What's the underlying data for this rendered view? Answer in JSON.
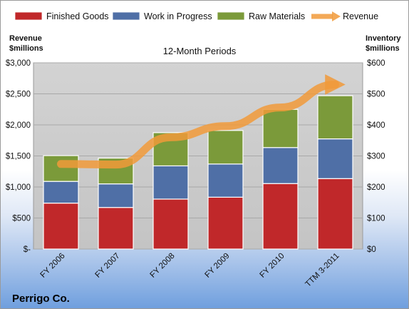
{
  "chart_data": {
    "type": "bar",
    "title": "12-Month Periods",
    "company": "Perrigo Co.",
    "categories": [
      "FY 2006",
      "FY 2007",
      "FY 2008",
      "FY 2009",
      "FY 2010",
      "TTM 3-2011"
    ],
    "stacked": true,
    "series": [
      {
        "name": "Finished Goods",
        "axis": "right",
        "color": "#c0282a",
        "values": [
          148,
          134,
          161,
          167,
          211,
          227
        ]
      },
      {
        "name": "Work in Progress",
        "axis": "right",
        "color": "#4f6fa6",
        "values": [
          70,
          76,
          107,
          107,
          116,
          128
        ]
      },
      {
        "name": "Raw Materials",
        "axis": "right",
        "color": "#7b9a3a",
        "values": [
          83,
          83,
          107,
          108,
          123,
          139
        ]
      }
    ],
    "line_series": {
      "name": "Revenue",
      "axis": "left",
      "color": "#f19a3a",
      "values": [
        1370,
        1360,
        1800,
        1980,
        2280,
        2650
      ]
    },
    "left_axis": {
      "label_line1": "Revenue",
      "label_line2": "$millions",
      "ylim": [
        0,
        3000
      ],
      "ticks": [
        0,
        500,
        1000,
        1500,
        2000,
        2500,
        3000
      ],
      "tick_labels": [
        "$-",
        "$500",
        "$1,000",
        "$1,500",
        "$2,000",
        "$2,500",
        "$3,000"
      ]
    },
    "right_axis": {
      "label_line1": "Inventory",
      "label_line2": "$millions",
      "ylim": [
        0,
        600
      ],
      "ticks": [
        0,
        100,
        200,
        300,
        400,
        500,
        600
      ],
      "tick_labels": [
        "$0",
        "$100",
        "$200",
        "$300",
        "$400",
        "$500",
        "$600"
      ]
    },
    "legend_position": "top",
    "grid": true
  }
}
